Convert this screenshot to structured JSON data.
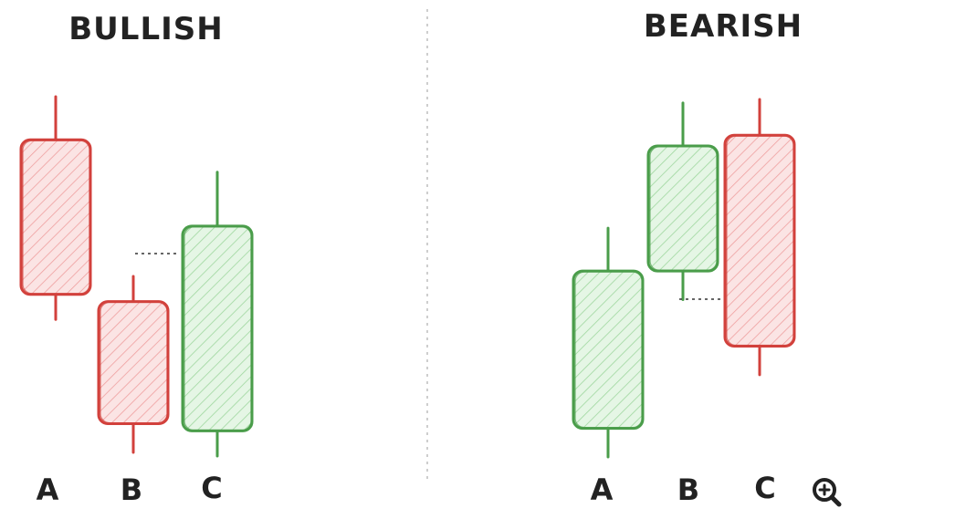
{
  "titles": {
    "bullish": "BULLISH",
    "bearish": "BEARISH"
  },
  "colors": {
    "bull": "#4a9d4a",
    "bull_fill": "#cdeccd",
    "bear": "#d2413c",
    "bear_fill": "#f6cccd",
    "ink": "#222222"
  },
  "icons": {
    "zoom": "zoom-in-icon"
  },
  "bullish": {
    "labels": [
      "A",
      "B",
      "C"
    ],
    "candles": [
      {
        "label": "A",
        "direction": "bearish",
        "high": 100,
        "open": 88,
        "close": 45,
        "low": 38
      },
      {
        "label": "B",
        "direction": "bearish",
        "high": 50,
        "open": 43,
        "close": 9,
        "low": 1
      },
      {
        "label": "C",
        "direction": "bullish",
        "high": 79,
        "open": 7,
        "close": 64,
        "low": 0
      }
    ]
  },
  "bearish": {
    "labels": [
      "A",
      "B",
      "C"
    ],
    "candles": [
      {
        "label": "A",
        "direction": "bullish",
        "high": 64,
        "open": 8,
        "close": 52,
        "low": 0
      },
      {
        "label": "B",
        "direction": "bullish",
        "high": 99,
        "open": 52,
        "close": 87,
        "low": 44
      },
      {
        "label": "C",
        "direction": "bearish",
        "high": 100,
        "open": 90,
        "close": 31,
        "low": 23
      }
    ]
  }
}
